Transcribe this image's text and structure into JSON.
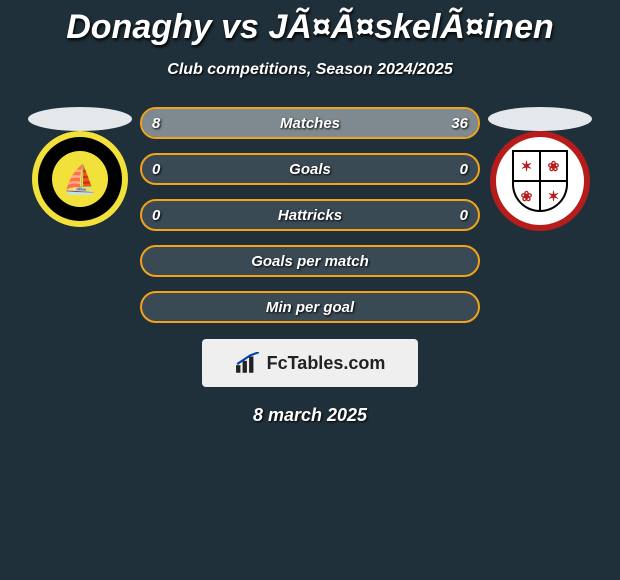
{
  "title": "Donaghy vs JÃ¤Ã¤skelÃ¤inen",
  "subtitle": "Club competitions, Season 2024/2025",
  "date": "8 march 2025",
  "footer_brand": "FcTables.com",
  "colors": {
    "background": "#20303a",
    "bar_border": "#f2a31b",
    "bar_base": "#3a4a54",
    "bar_fill": "#7f8a90",
    "text": "#ffffff",
    "logo_bg": "#efefef"
  },
  "font": {
    "title_size": 34,
    "subtitle_size": 16,
    "bar_label_size": 15,
    "style": "italic",
    "weight_heavy": 800
  },
  "bars": [
    {
      "id": "matches",
      "label": "Matches",
      "left_val": "8",
      "right_val": "36",
      "left_num": 8,
      "right_num": 36
    },
    {
      "id": "goals",
      "label": "Goals",
      "left_val": "0",
      "right_val": "0",
      "left_num": 0,
      "right_num": 0
    },
    {
      "id": "hattricks",
      "label": "Hattricks",
      "left_val": "0",
      "right_val": "0",
      "left_num": 0,
      "right_num": 0
    },
    {
      "id": "gpm",
      "label": "Goals per match",
      "left_val": "",
      "right_val": "",
      "left_num": 0,
      "right_num": 0
    },
    {
      "id": "mpg",
      "label": "Min per goal",
      "left_val": "",
      "right_val": "",
      "left_num": 0,
      "right_num": 0
    }
  ],
  "crest_left_name": "boston-united",
  "crest_right_name": "woking"
}
